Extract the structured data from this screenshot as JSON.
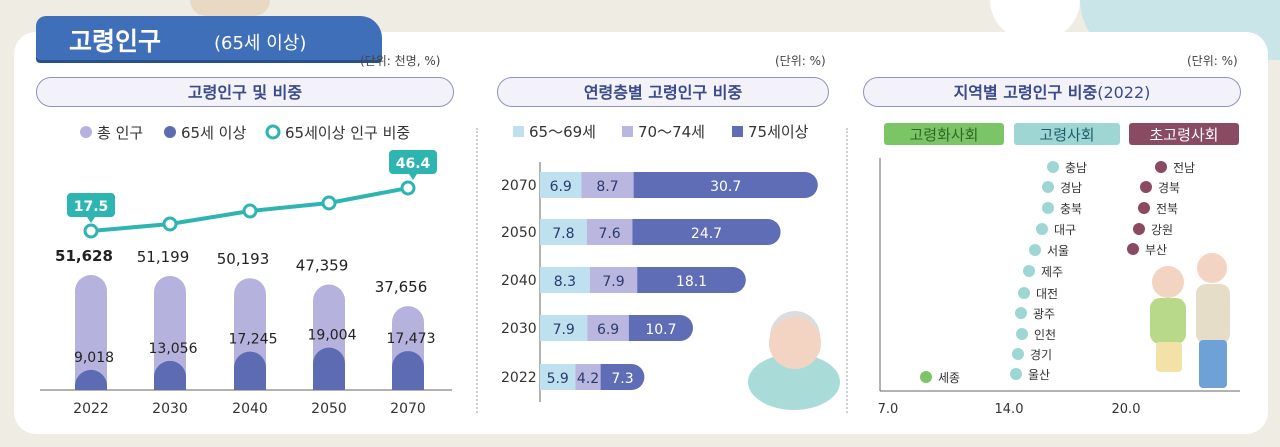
{
  "header": {
    "title": "고령인구",
    "subtitle": "(65세 이상)"
  },
  "colors": {
    "total": "#b5b3dd",
    "elderly": "#5d6bb3",
    "ratio_line": "#2fb5b1",
    "age_65_69": "#bee0ef",
    "age_70_74": "#b9b6e0",
    "age_75_plus": "#5f6cb6",
    "aging": "#7cc567",
    "aged": "#9dd6d3",
    "super_aged": "#8a4a62"
  },
  "panel1": {
    "unit": "(단위: 천명, %)",
    "title": "고령인구 및 비중",
    "legend": [
      "총 인구",
      "65세 이상",
      "65세이상 인구 비중"
    ]
  },
  "panel2": {
    "unit": "(단위: %)",
    "title": "연령층별 고령인구 비중",
    "legend": [
      "65～69세",
      "70～74세",
      "75세이상"
    ]
  },
  "panel3": {
    "unit": "(단위: %)",
    "title": "지역별 고령인구 비중",
    "title_suffix": "(2022)",
    "categories": [
      "고령화사회",
      "고령사회",
      "초고령사회"
    ]
  },
  "chart_data": [
    {
      "type": "bar",
      "categories": [
        "2022",
        "2030",
        "2040",
        "2050",
        "2070"
      ],
      "series": [
        {
          "name": "총 인구",
          "values": [
            51628,
            51199,
            50193,
            47359,
            37656
          ],
          "labels": [
            "51,628",
            "51,199",
            "50,193",
            "47,359",
            "37,656"
          ]
        },
        {
          "name": "65세 이상",
          "values": [
            9018,
            13056,
            17245,
            19004,
            17473
          ],
          "labels": [
            "9,018",
            "13,056",
            "17,245",
            "19,004",
            "17,473"
          ]
        },
        {
          "name": "65세이상 인구 비중",
          "type": "line",
          "values": [
            17.5,
            null,
            null,
            null,
            46.4
          ],
          "labels": [
            "17.5",
            "",
            "",
            "",
            "46.4"
          ]
        }
      ]
    },
    {
      "type": "bar",
      "orientation": "horizontal",
      "stacked": true,
      "categories": [
        "2070",
        "2050",
        "2040",
        "2030",
        "2022"
      ],
      "series": [
        {
          "name": "65～69세",
          "values": [
            6.9,
            7.8,
            8.3,
            7.9,
            5.9
          ]
        },
        {
          "name": "70～74세",
          "values": [
            8.7,
            7.6,
            7.9,
            6.9,
            4.2
          ]
        },
        {
          "name": "75세이상",
          "values": [
            30.7,
            24.7,
            18.1,
            10.7,
            7.3
          ]
        }
      ]
    },
    {
      "type": "scatter",
      "x_ticks": [
        "7.0",
        "14.0",
        "20.0"
      ],
      "xlim": [
        7,
        21.5
      ],
      "points": [
        {
          "name": "세종",
          "x": 9.0,
          "group": "고령화사회"
        },
        {
          "name": "울산",
          "x": 14.1,
          "group": "고령사회"
        },
        {
          "name": "경기",
          "x": 14.2,
          "group": "고령사회"
        },
        {
          "name": "인천",
          "x": 14.6,
          "group": "고령사회"
        },
        {
          "name": "광주",
          "x": 14.6,
          "group": "고령사회"
        },
        {
          "name": "대전",
          "x": 14.7,
          "group": "고령사회"
        },
        {
          "name": "제주",
          "x": 15.0,
          "group": "고령사회"
        },
        {
          "name": "서울",
          "x": 15.5,
          "group": "고령사회"
        },
        {
          "name": "대구",
          "x": 16.3,
          "group": "고령사회"
        },
        {
          "name": "충북",
          "x": 16.9,
          "group": "고령사회"
        },
        {
          "name": "경남",
          "x": 16.9,
          "group": "고령사회"
        },
        {
          "name": "충남",
          "x": 17.4,
          "group": "고령사회"
        },
        {
          "name": "부산",
          "x": 20.2,
          "group": "초고령사회"
        },
        {
          "name": "강원",
          "x": 20.6,
          "group": "초고령사회"
        },
        {
          "name": "전북",
          "x": 21.1,
          "group": "초고령사회"
        },
        {
          "name": "경북",
          "x": 21.1,
          "group": "초고령사회"
        },
        {
          "name": "전남",
          "x": 21.3,
          "group": "초고령사회"
        }
      ]
    }
  ]
}
